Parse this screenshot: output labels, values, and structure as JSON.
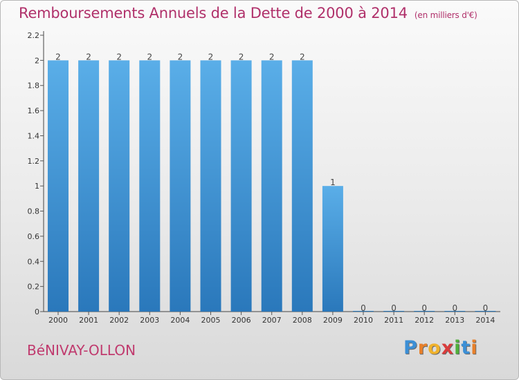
{
  "header": {
    "title": "Remboursements Annuels de la Dette de 2000 à 2014",
    "unit": "(en milliers d'€)"
  },
  "commune": "BéNIVAY-OLLON",
  "logo": {
    "letters": [
      "P",
      "r",
      "o",
      "x",
      "i",
      "t",
      "i"
    ],
    "colors": [
      "#3b8fd6",
      "#e8802a",
      "#f0b22c",
      "#d93c3c",
      "#4faf3a",
      "#3b8fd6",
      "#e8802a"
    ]
  },
  "colors": {
    "bar_top": "#5aaee8",
    "bar_bottom": "#2a78bb",
    "axis": "#444444",
    "grid_tick": "#555555"
  },
  "chart_data": {
    "type": "bar",
    "title": "Remboursements Annuels de la Dette de 2000 à 2014",
    "ylabel": "en milliers d'€",
    "xlabel": "",
    "categories": [
      "2000",
      "2001",
      "2002",
      "2003",
      "2004",
      "2005",
      "2006",
      "2007",
      "2008",
      "2009",
      "2010",
      "2011",
      "2012",
      "2013",
      "2014"
    ],
    "values": [
      2,
      2,
      2,
      2,
      2,
      2,
      2,
      2,
      2,
      1,
      0,
      0,
      0,
      0,
      0
    ],
    "value_labels": [
      "2",
      "2",
      "2",
      "2",
      "2",
      "2",
      "2",
      "2",
      "2",
      "1",
      "0",
      "0",
      "0",
      "0",
      "0"
    ],
    "ylim": [
      0,
      2.2
    ],
    "yticks": [
      0,
      0.2,
      0.4,
      0.6,
      0.8,
      1,
      1.2,
      1.4,
      1.6,
      1.8,
      2,
      2.2
    ],
    "ytick_labels": [
      "0",
      "0.2",
      "0.4",
      "0.6",
      "0.8",
      "1",
      "1.2",
      "1.4",
      "1.6",
      "1.8",
      "2",
      "2.2"
    ],
    "grid": false
  }
}
